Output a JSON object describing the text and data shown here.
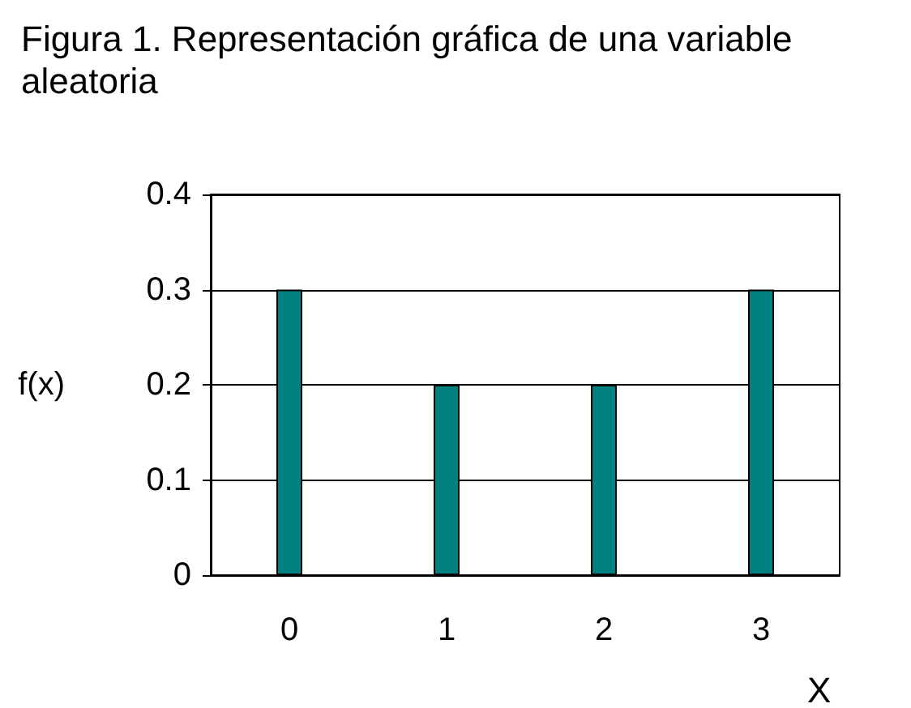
{
  "chart_data": {
    "type": "bar",
    "title": "Figura 1. Representación gráfica de una variable aleatoria",
    "xlabel": "X",
    "ylabel": "f(x)",
    "categories": [
      "0",
      "1",
      "2",
      "3"
    ],
    "values": [
      0.3,
      0.2,
      0.2,
      0.3
    ],
    "color": "#008080",
    "ylim": [
      0,
      0.4
    ],
    "yticks": [
      0,
      0.1,
      0.2,
      0.3,
      0.4
    ],
    "grid": "y"
  }
}
